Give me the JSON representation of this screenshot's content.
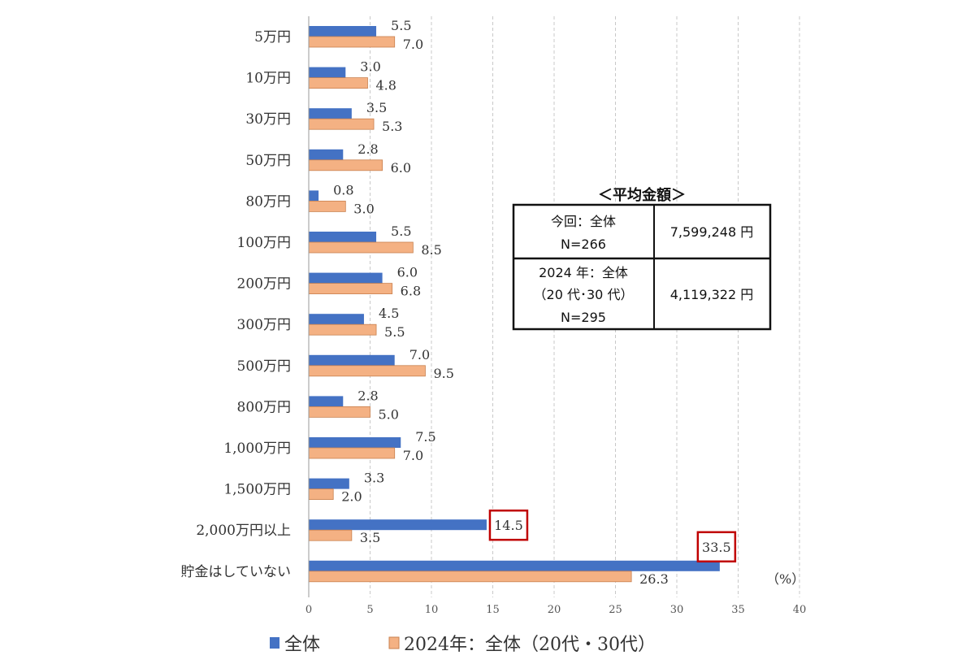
{
  "chart_data": {
    "type": "bar",
    "orientation": "horizontal",
    "categories": [
      "5万円",
      "10万円",
      "30万円",
      "50万円",
      "80万円",
      "100万円",
      "200万円",
      "300万円",
      "500万円",
      "800万円",
      "1,000万円",
      "1,500万円",
      "2,000万円以上",
      "貯金はしていない"
    ],
    "series": [
      {
        "name": "全体",
        "color": "#4472C4",
        "values": [
          5.5,
          3.0,
          3.5,
          2.8,
          0.8,
          5.5,
          6.0,
          4.5,
          7.0,
          2.8,
          7.5,
          3.3,
          14.5,
          33.5
        ],
        "labels": [
          "5.5",
          "3.0",
          "3.5",
          "2.8",
          "0.8",
          "5.5",
          "6.0",
          "4.5",
          "7.0",
          "2.8",
          "7.5",
          "3.3",
          "14.5",
          "33.5"
        ]
      },
      {
        "name": "2024年：全体（20代・30代）",
        "color": "#F4B183",
        "values": [
          7.0,
          4.8,
          5.3,
          6.0,
          3.0,
          8.5,
          6.8,
          5.5,
          9.5,
          5.0,
          7.0,
          2.0,
          3.5,
          26.3
        ],
        "labels": [
          "7.0",
          "4.8",
          "5.3",
          "6.0",
          "3.0",
          "8.5",
          "6.8",
          "5.5",
          "9.5",
          "5.0",
          "7.0",
          "2.0",
          "3.5",
          "26.3"
        ]
      }
    ],
    "highlighted": [
      {
        "series": 0,
        "index": 12
      },
      {
        "series": 0,
        "index": 13
      }
    ],
    "xlim": [
      0,
      40
    ],
    "xticks": [
      "0",
      "5",
      "10",
      "15",
      "20",
      "25",
      "30",
      "35",
      "40"
    ],
    "unit_label": "（%）",
    "grid": true,
    "legend": "bottom"
  },
  "summary_table": {
    "title": "＜平均金額＞",
    "rows": [
      {
        "label_lines": [
          "今回：全体",
          "N=266"
        ],
        "value": "7,599,248 円"
      },
      {
        "label_lines": [
          "2024 年：全体",
          "（20 代･30 代）",
          "N=295"
        ],
        "value": "4,119,322 円"
      }
    ]
  }
}
